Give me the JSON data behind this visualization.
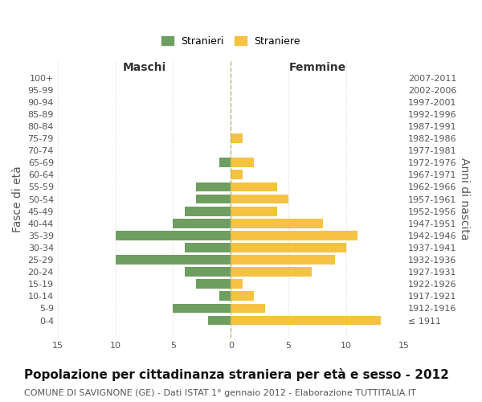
{
  "age_groups": [
    "100+",
    "95-99",
    "90-94",
    "85-89",
    "80-84",
    "75-79",
    "70-74",
    "65-69",
    "60-64",
    "55-59",
    "50-54",
    "45-49",
    "40-44",
    "35-39",
    "30-34",
    "25-29",
    "20-24",
    "15-19",
    "10-14",
    "5-9",
    "0-4"
  ],
  "birth_years": [
    "≤ 1911",
    "1912-1916",
    "1917-1921",
    "1922-1926",
    "1927-1931",
    "1932-1936",
    "1937-1941",
    "1942-1946",
    "1947-1951",
    "1952-1956",
    "1957-1961",
    "1962-1966",
    "1967-1971",
    "1972-1976",
    "1977-1981",
    "1982-1986",
    "1987-1991",
    "1992-1996",
    "1997-2001",
    "2002-2006",
    "2007-2011"
  ],
  "maschi": [
    0,
    0,
    0,
    0,
    0,
    0,
    0,
    1,
    0,
    3,
    3,
    4,
    5,
    10,
    4,
    10,
    4,
    3,
    1,
    5,
    2
  ],
  "femmine": [
    0,
    0,
    0,
    0,
    0,
    1,
    0,
    2,
    1,
    4,
    5,
    4,
    8,
    11,
    10,
    9,
    7,
    1,
    2,
    3,
    13
  ],
  "male_color": "#6e9e60",
  "female_color": "#f5c242",
  "dashed_line_color": "#b8b870",
  "grid_color": "#d8d8d8",
  "bg_color": "#ffffff",
  "title": "Popolazione per cittadinanza straniera per età e sesso - 2012",
  "subtitle": "COMUNE DI SAVIGNONE (GE) - Dati ISTAT 1° gennaio 2012 - Elaborazione TUTTITALIA.IT",
  "xlabel_left": "Maschi",
  "xlabel_right": "Femmine",
  "ylabel_left": "Fasce di età",
  "ylabel_right": "Anni di nascita",
  "legend_male": "Stranieri",
  "legend_female": "Straniere",
  "xlim": 15,
  "title_fontsize": 11,
  "subtitle_fontsize": 8,
  "axis_label_fontsize": 10,
  "tick_fontsize": 8,
  "bar_height": 0.78
}
